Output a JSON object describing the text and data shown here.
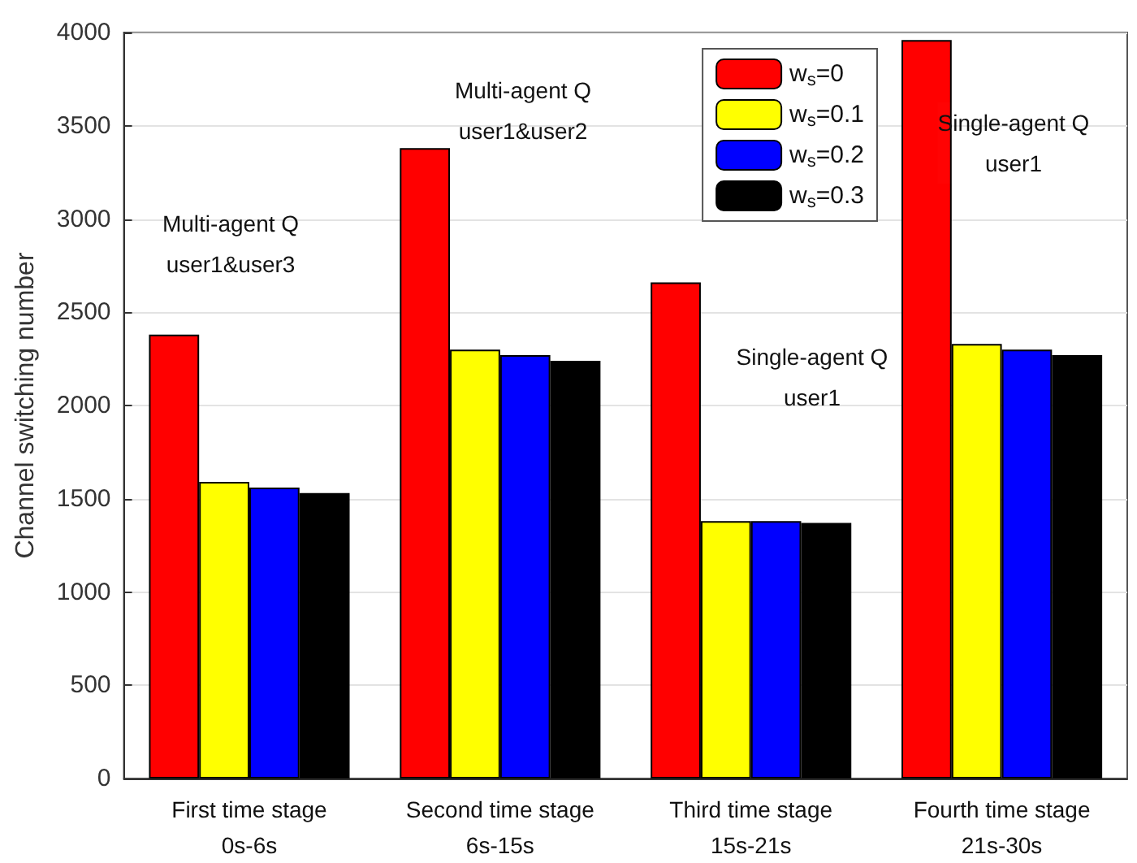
{
  "chart_data": {
    "type": "bar",
    "ylabel": "Channel switching number",
    "categories": [
      "First time stage\n0s-6s",
      "Second time stage\n6s-15s",
      "Third time stage\n15s-21s",
      "Fourth time stage\n21s-30s"
    ],
    "series": [
      {
        "name": "w$_{s}$=0",
        "color": "#ff0000",
        "values": [
          2380,
          3380,
          2660,
          3960
        ]
      },
      {
        "name": "w$_{s}$=0.1",
        "color": "#ffff00",
        "values": [
          1590,
          2300,
          1380,
          2330
        ]
      },
      {
        "name": "w$_{s}$=0.2",
        "color": "#0000ff",
        "values": [
          1560,
          2270,
          1380,
          2300
        ]
      },
      {
        "name": "w$_{s}$=0.3",
        "color": "#000000",
        "values": [
          1530,
          2240,
          1370,
          2270
        ]
      }
    ],
    "ylim": [
      0,
      4000
    ],
    "yticks": [
      0,
      500,
      1000,
      1500,
      2000,
      2500,
      3000,
      3500,
      4000
    ],
    "grid": "y",
    "legend": "top right",
    "annotations": [
      "Multi-agent Q\nuser1&user3",
      "Multi-agent Q\nuser1&user2",
      "Single-agent Q\nuser1",
      "Single-agent Q\nuser1"
    ]
  }
}
